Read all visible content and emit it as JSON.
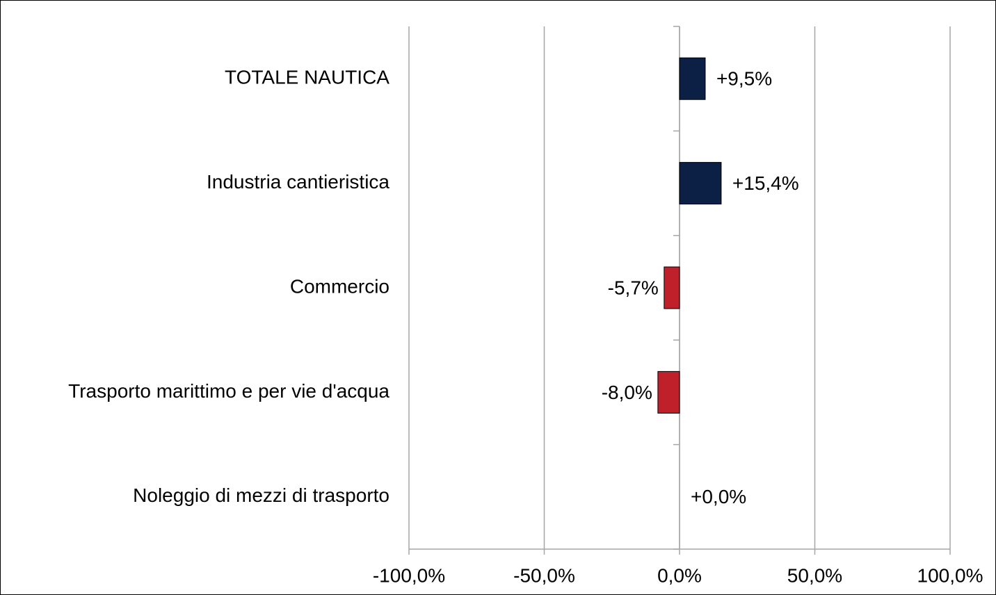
{
  "chart_data": {
    "type": "hbar",
    "categories": [
      "TOTALE NAUTICA",
      "Industria cantieristica",
      "Commercio",
      "Trasporto marittimo e per vie d'acqua",
      "Noleggio di mezzi di trasporto"
    ],
    "values": [
      9.5,
      15.4,
      -5.7,
      -8.0,
      0.0
    ],
    "value_labels": [
      "+9,5%",
      "+15,4%",
      "-5,7%",
      "-8,0%",
      "+0,0%"
    ],
    "colors": [
      "#0c1f44",
      "#0c1f44",
      "#c0202a",
      "#c0202a",
      "#0c1f44"
    ],
    "xlim": [
      -100,
      100
    ],
    "xticks": [
      {
        "value": -100,
        "label": "-100,0%"
      },
      {
        "value": -50,
        "label": "-50,0%"
      },
      {
        "value": 0,
        "label": "0,0%"
      },
      {
        "value": 50,
        "label": "50,0%"
      },
      {
        "value": 100,
        "label": "100,0%"
      }
    ],
    "grid": true
  }
}
